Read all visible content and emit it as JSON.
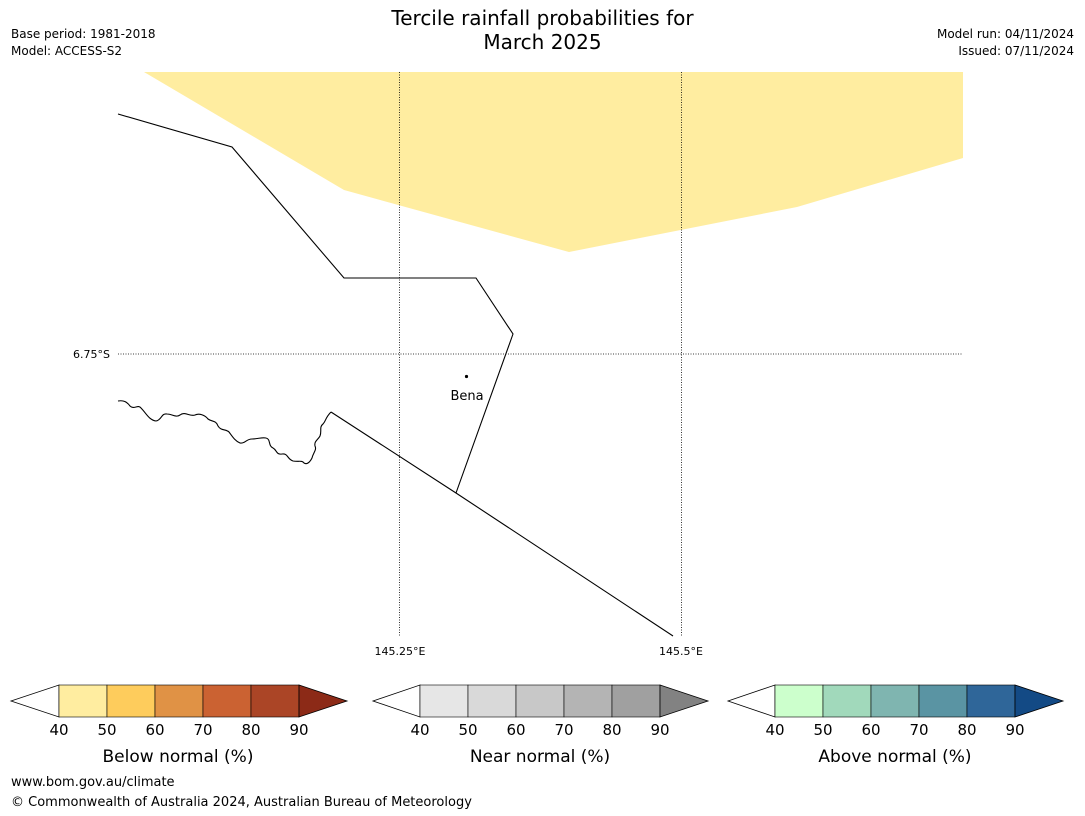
{
  "title_line1": "Tercile rainfall probabilities for",
  "title_line2": "March 2025",
  "meta": {
    "base_period": "Base period: 1981-2018",
    "model": "Model: ACCESS-S2",
    "model_run": "Model run: 04/11/2024",
    "issued": "Issued: 07/11/2024"
  },
  "map": {
    "grid_labels": {
      "lat": "6.75°S",
      "lon1": "145.25°E",
      "lon2": "145.5°E"
    },
    "place": "Bena",
    "shaded_category": "Below normal 40-50%",
    "shaded_color": "#ffeda0"
  },
  "legends": [
    {
      "label": "Below normal (%)",
      "ticks": [
        "40",
        "50",
        "60",
        "70",
        "80",
        "90"
      ],
      "colors": [
        "#ffeda0",
        "#fecc5c",
        "#e09245",
        "#cb6232",
        "#ab4526",
        "#8c2a17"
      ]
    },
    {
      "label": "Near normal (%)",
      "ticks": [
        "40",
        "50",
        "60",
        "70",
        "80",
        "90"
      ],
      "colors": [
        "#e6e6e6",
        "#d9d9d9",
        "#c8c8c8",
        "#b4b4b4",
        "#a0a0a0",
        "#828282"
      ]
    },
    {
      "label": "Above normal (%)",
      "ticks": [
        "40",
        "50",
        "60",
        "70",
        "80",
        "90"
      ],
      "colors": [
        "#ccffcc",
        "#a1d9bb",
        "#7fb5b0",
        "#5a94a3",
        "#2f6699",
        "#134a85"
      ]
    }
  ],
  "footer": {
    "url": "www.bom.gov.au/climate",
    "copyright": "© Commonwealth of Australia 2024, Australian Bureau of Meteorology"
  }
}
